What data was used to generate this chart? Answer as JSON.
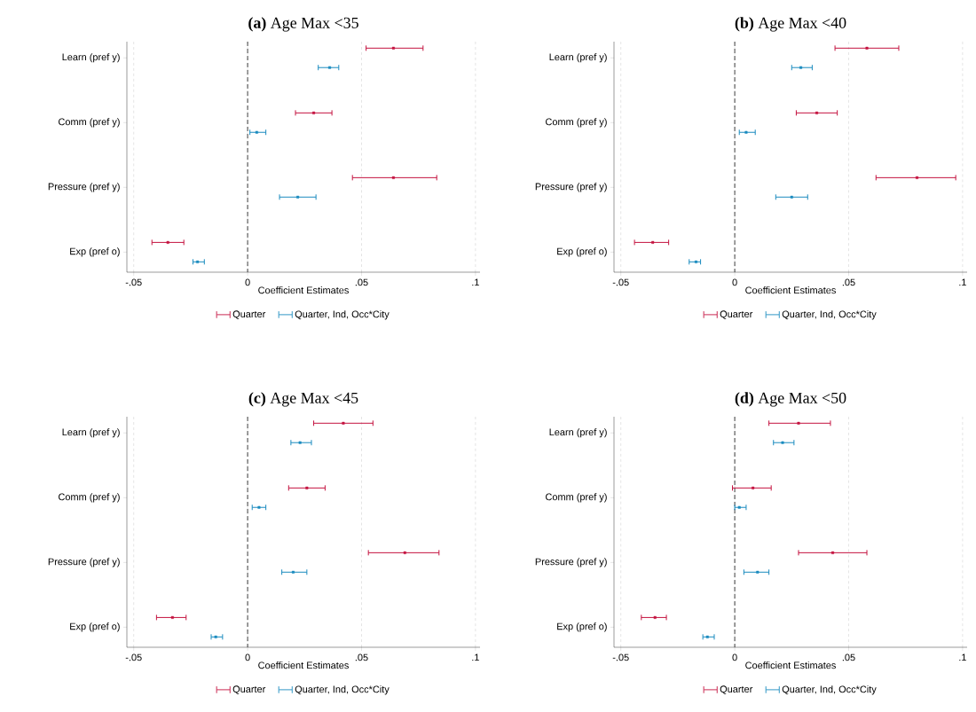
{
  "chart_data": [
    {
      "type": "scatter",
      "orientation": "horizontal",
      "title": "**(a)** Age Max <35",
      "xlabel": "Coefficient Estimates",
      "categories": [
        "Learn (pref y)",
        "Comm (pref y)",
        "Pressure (pref y)",
        "Exp (pref o)"
      ],
      "xlim": [
        -0.053,
        0.102
      ],
      "xticks": [
        {
          "value": -0.05,
          "label": "-.05"
        },
        0,
        {
          "value": 0.05,
          "label": ".05"
        },
        {
          "value": 0.1,
          "label": ".1"
        }
      ],
      "grid": "x",
      "legend": "bottom",
      "marker": "square",
      "ref_lines": [
        {
          "axis": "x",
          "value": 0,
          "line_style": "dashed"
        }
      ],
      "series": [
        {
          "name": "Quarter",
          "color": "#c4123f",
          "values": [
            0.064,
            0.029,
            0.064,
            -0.035
          ],
          "errors": [
            [
              0.052,
              0.077
            ],
            [
              0.021,
              0.037
            ],
            [
              0.046,
              0.083
            ],
            [
              -0.042,
              -0.028
            ]
          ]
        },
        {
          "name": "Quarter, Ind, Occ*City",
          "color": "#1a8bbf",
          "values": [
            0.036,
            0.004,
            0.022,
            -0.022
          ],
          "errors": [
            [
              0.031,
              0.04
            ],
            [
              0.001,
              0.008
            ],
            [
              0.014,
              0.03
            ],
            [
              -0.024,
              -0.019
            ]
          ]
        }
      ]
    },
    {
      "type": "scatter",
      "orientation": "horizontal",
      "title": "**(b)** Age Max <40",
      "xlabel": "Coefficient Estimates",
      "categories": [
        "Learn (pref y)",
        "Comm (pref y)",
        "Pressure (pref y)",
        "Exp (pref o)"
      ],
      "xlim": [
        -0.053,
        0.102
      ],
      "xticks": [
        {
          "value": -0.05,
          "label": "-.05"
        },
        0,
        {
          "value": 0.05,
          "label": ".05"
        },
        {
          "value": 0.1,
          "label": ".1"
        }
      ],
      "grid": "x",
      "legend": "bottom",
      "marker": "square",
      "ref_lines": [
        {
          "axis": "x",
          "value": 0,
          "line_style": "dashed"
        }
      ],
      "series": [
        {
          "name": "Quarter",
          "color": "#c4123f",
          "values": [
            0.058,
            0.036,
            0.08,
            -0.036
          ],
          "errors": [
            [
              0.044,
              0.072
            ],
            [
              0.027,
              0.045
            ],
            [
              0.062,
              0.097
            ],
            [
              -0.044,
              -0.029
            ]
          ]
        },
        {
          "name": "Quarter, Ind, Occ*City",
          "color": "#1a8bbf",
          "values": [
            0.029,
            0.005,
            0.025,
            -0.017
          ],
          "errors": [
            [
              0.025,
              0.034
            ],
            [
              0.002,
              0.009
            ],
            [
              0.018,
              0.032
            ],
            [
              -0.02,
              -0.015
            ]
          ]
        }
      ]
    },
    {
      "type": "scatter",
      "orientation": "horizontal",
      "title": "**(c)** Age Max <45",
      "xlabel": "Coefficient Estimates",
      "categories": [
        "Learn (pref y)",
        "Comm (pref y)",
        "Pressure (pref y)",
        "Exp (pref o)"
      ],
      "xlim": [
        -0.053,
        0.102
      ],
      "xticks": [
        {
          "value": -0.05,
          "label": "-.05"
        },
        0,
        {
          "value": 0.05,
          "label": ".05"
        },
        {
          "value": 0.1,
          "label": ".1"
        }
      ],
      "grid": "x",
      "legend": "bottom",
      "marker": "square",
      "ref_lines": [
        {
          "axis": "x",
          "value": 0,
          "line_style": "dashed"
        }
      ],
      "series": [
        {
          "name": "Quarter",
          "color": "#c4123f",
          "values": [
            0.042,
            0.026,
            0.069,
            -0.033
          ],
          "errors": [
            [
              0.029,
              0.055
            ],
            [
              0.018,
              0.034
            ],
            [
              0.053,
              0.084
            ],
            [
              -0.04,
              -0.027
            ]
          ]
        },
        {
          "name": "Quarter, Ind, Occ*City",
          "color": "#1a8bbf",
          "values": [
            0.023,
            0.005,
            0.02,
            -0.014
          ],
          "errors": [
            [
              0.019,
              0.028
            ],
            [
              0.002,
              0.008
            ],
            [
              0.015,
              0.026
            ],
            [
              -0.016,
              -0.011
            ]
          ]
        }
      ]
    },
    {
      "type": "scatter",
      "orientation": "horizontal",
      "title": "**(d)** Age Max <50",
      "xlabel": "Coefficient Estimates",
      "categories": [
        "Learn (pref y)",
        "Comm (pref y)",
        "Pressure (pref y)",
        "Exp (pref o)"
      ],
      "xlim": [
        -0.053,
        0.102
      ],
      "xticks": [
        {
          "value": -0.05,
          "label": "-.05"
        },
        0,
        {
          "value": 0.05,
          "label": ".05"
        },
        {
          "value": 0.1,
          "label": ".1"
        }
      ],
      "grid": "x",
      "legend": "bottom",
      "marker": "square",
      "ref_lines": [
        {
          "axis": "x",
          "value": 0,
          "line_style": "dashed"
        }
      ],
      "series": [
        {
          "name": "Quarter",
          "color": "#c4123f",
          "values": [
            0.028,
            0.008,
            0.043,
            -0.035
          ],
          "errors": [
            [
              0.015,
              0.042
            ],
            [
              -0.001,
              0.016
            ],
            [
              0.028,
              0.058
            ],
            [
              -0.041,
              -0.03
            ]
          ]
        },
        {
          "name": "Quarter, Ind, Occ*City",
          "color": "#1a8bbf",
          "values": [
            0.021,
            0.002,
            0.01,
            -0.012
          ],
          "errors": [
            [
              0.017,
              0.026
            ],
            [
              0.0,
              0.005
            ],
            [
              0.004,
              0.015
            ],
            [
              -0.014,
              -0.009
            ]
          ]
        }
      ]
    }
  ]
}
